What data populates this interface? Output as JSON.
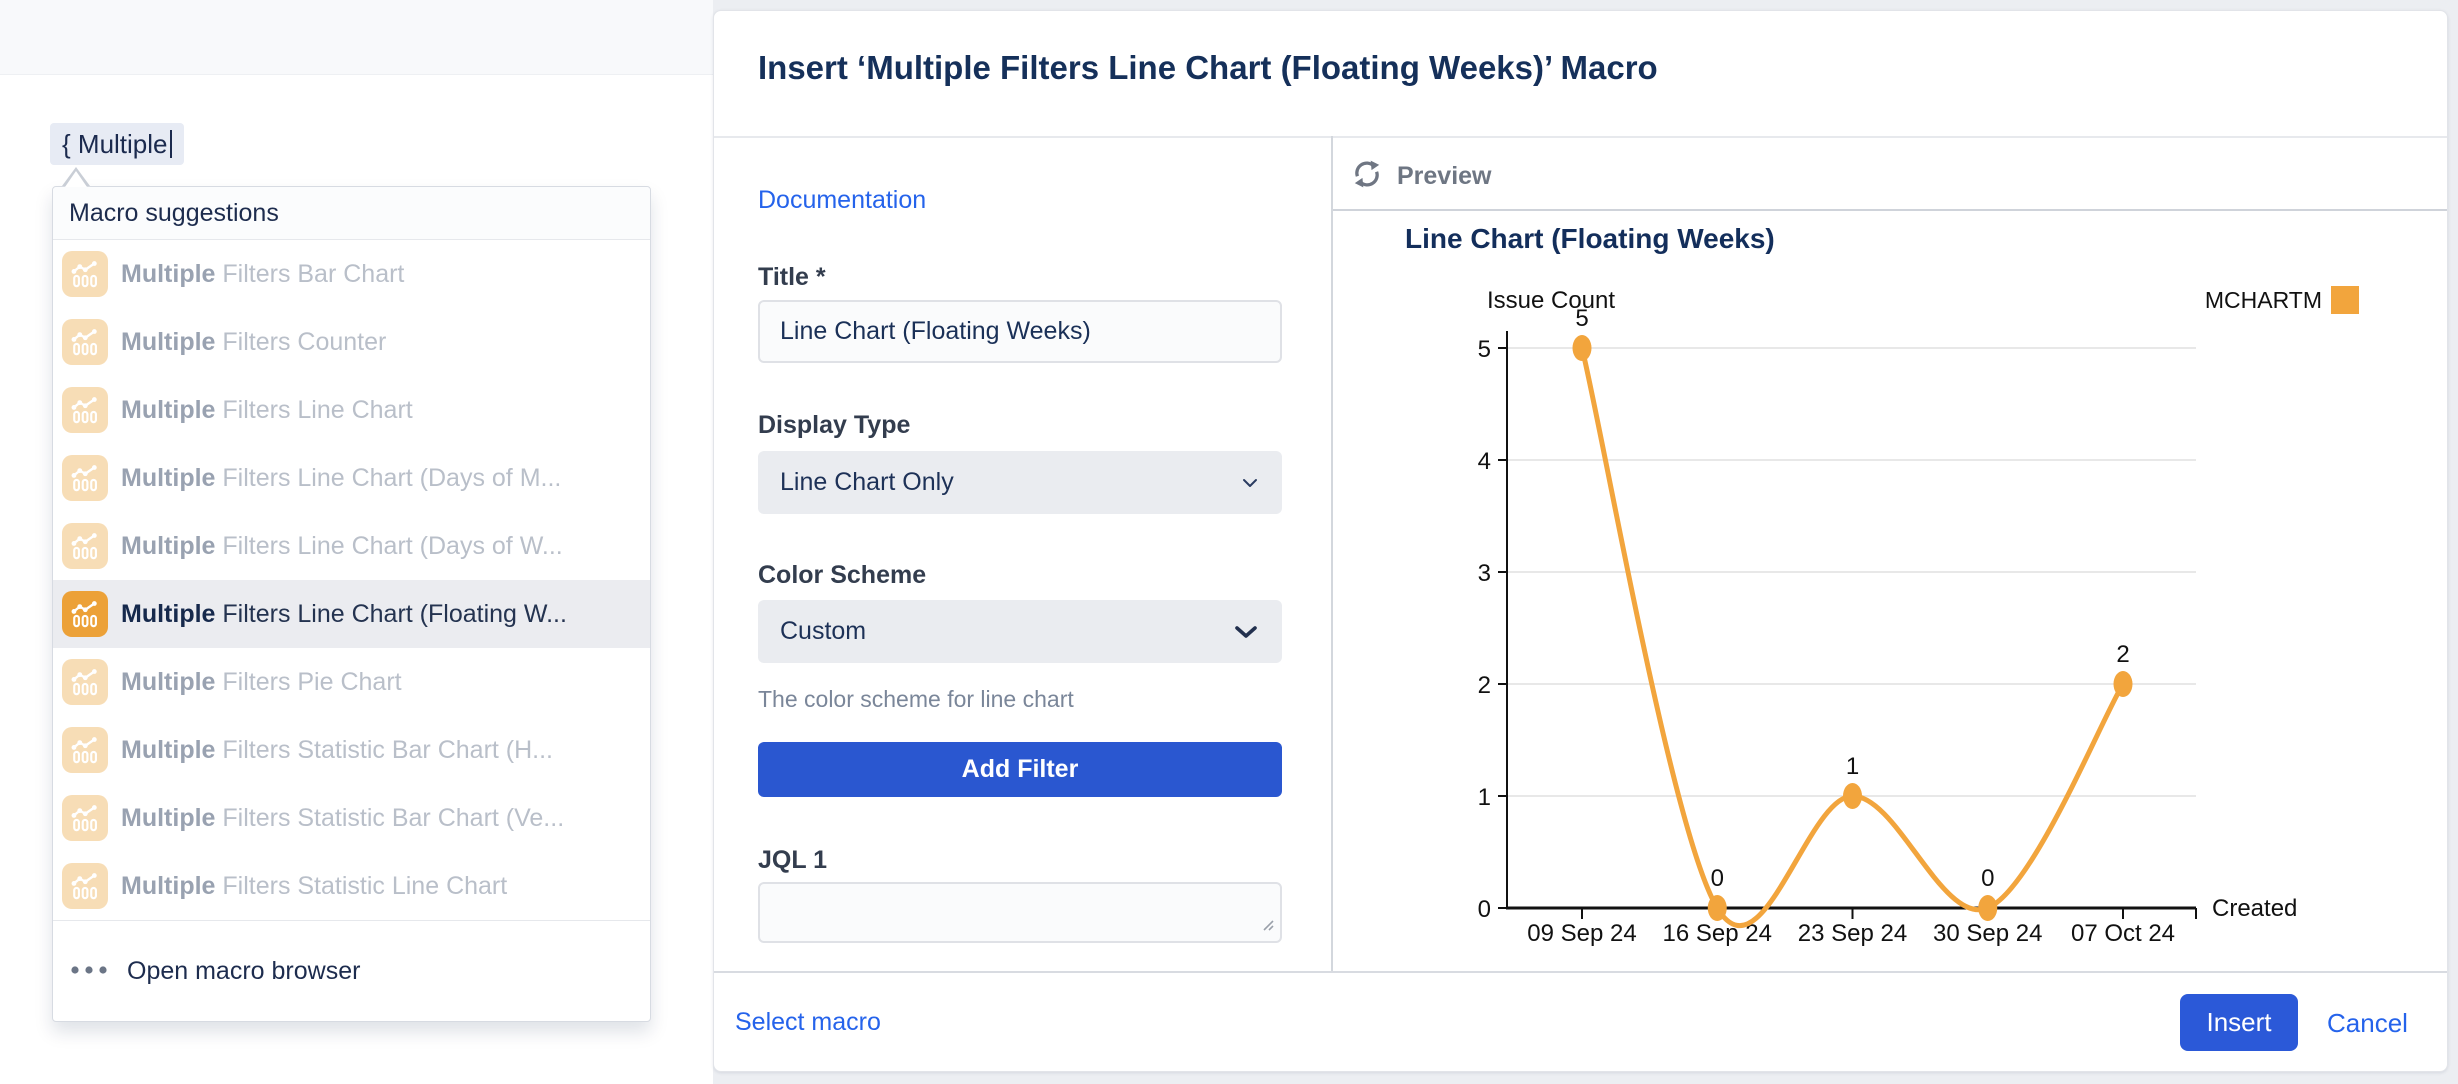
{
  "editor": {
    "token_text": "{ Multiple",
    "suggestions": {
      "header": "Macro suggestions",
      "items": [
        {
          "bold": "Multiple",
          "rest": " Filters Bar Chart",
          "selected": false
        },
        {
          "bold": "Multiple",
          "rest": " Filters Counter",
          "selected": false
        },
        {
          "bold": "Multiple",
          "rest": " Filters Line Chart",
          "selected": false
        },
        {
          "bold": "Multiple",
          "rest": " Filters Line Chart (Days of M...",
          "selected": false
        },
        {
          "bold": "Multiple",
          "rest": " Filters Line Chart (Days of W...",
          "selected": false
        },
        {
          "bold": "Multiple",
          "rest": " Filters Line Chart (Floating W...",
          "selected": true
        },
        {
          "bold": "Multiple",
          "rest": " Filters Pie Chart",
          "selected": false
        },
        {
          "bold": "Multiple",
          "rest": " Filters Statistic Bar Chart (H...",
          "selected": false
        },
        {
          "bold": "Multiple",
          "rest": " Filters Statistic Bar Chart (Ve...",
          "selected": false
        },
        {
          "bold": "Multiple",
          "rest": " Filters Statistic Line Chart",
          "selected": false
        }
      ],
      "footer_label": "Open macro browser"
    }
  },
  "dialog": {
    "title": "Insert ‘Multiple Filters Line Chart (Floating Weeks)’ Macro",
    "form": {
      "documentation_label": "Documentation",
      "title_label": "Title *",
      "title_value": "Line Chart (Floating Weeks)",
      "display_type_label": "Display Type",
      "display_type_value": "Line Chart Only",
      "color_scheme_label": "Color Scheme",
      "color_scheme_value": "Custom",
      "color_scheme_help": "The color scheme for line chart",
      "add_filter_label": "Add Filter",
      "jql_label": "JQL 1",
      "jql_value": ""
    },
    "preview_label": "Preview",
    "footer": {
      "select_macro_label": "Select macro",
      "insert_label": "Insert",
      "cancel_label": "Cancel"
    }
  },
  "chart_data": {
    "type": "line",
    "title": "Line Chart (Floating Weeks)",
    "ylabel": "Issue Count",
    "xlabel": "Created",
    "categories": [
      "09 Sep 24",
      "16 Sep 24",
      "23 Sep 24",
      "30 Sep 24",
      "07 Oct 24"
    ],
    "series": [
      {
        "name": "MCHARTM",
        "color": "#F2A53D",
        "values": [
          5,
          0,
          1,
          0,
          2
        ]
      }
    ],
    "ylim": [
      0,
      5
    ],
    "yticks": [
      0,
      1,
      2,
      3,
      4,
      5
    ],
    "grid": true,
    "data_labels": true,
    "legend_position": "top-right"
  },
  "colors": {
    "button_blue": "#2A57D0",
    "insert_blue": "#2B59D8",
    "link_blue": "#2563EB",
    "line_orange": "#F2A53D",
    "icon_orange_selected": "#ECA138",
    "icon_orange_muted": "#F7DDB6"
  }
}
